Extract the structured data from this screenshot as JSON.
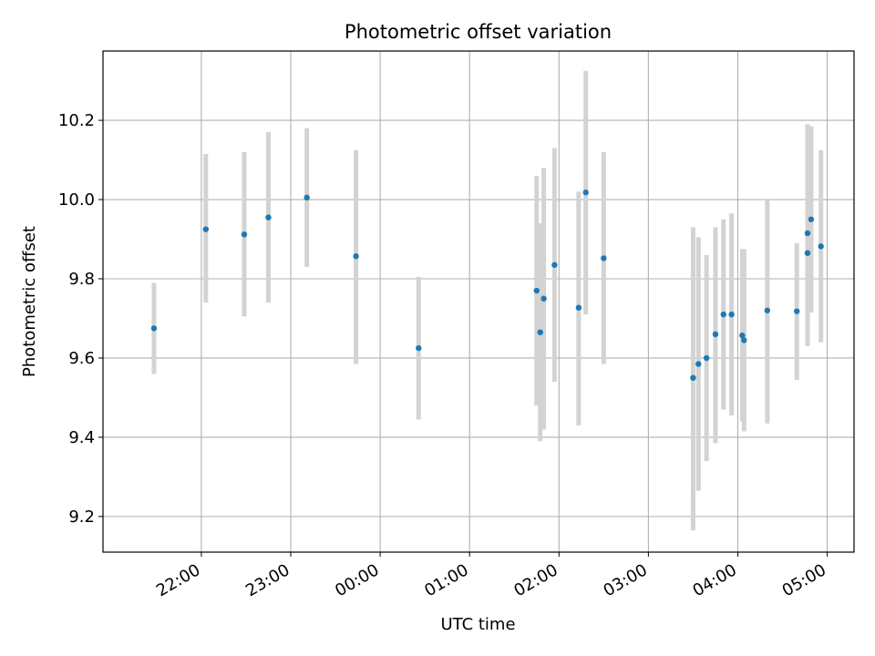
{
  "chart_data": {
    "type": "scatter",
    "title": "Photometric offset variation",
    "xlabel": "UTC time",
    "ylabel": "Photometric offset",
    "x_unit": "hours",
    "x_ticks": [
      {
        "value": 22,
        "label": "22:00"
      },
      {
        "value": 23,
        "label": "23:00"
      },
      {
        "value": 24,
        "label": "00:00"
      },
      {
        "value": 25,
        "label": "01:00"
      },
      {
        "value": 26,
        "label": "02:00"
      },
      {
        "value": 27,
        "label": "03:00"
      },
      {
        "value": 28,
        "label": "04:00"
      },
      {
        "value": 29,
        "label": "05:00"
      }
    ],
    "y_ticks": [
      {
        "value": 9.2,
        "label": "9.2"
      },
      {
        "value": 9.4,
        "label": "9.4"
      },
      {
        "value": 9.6,
        "label": "9.6"
      },
      {
        "value": 9.8,
        "label": "9.8"
      },
      {
        "value": 10.0,
        "label": "10.0"
      },
      {
        "value": 10.2,
        "label": "10.2"
      }
    ],
    "xlim": [
      20.9,
      29.3
    ],
    "ylim": [
      9.11,
      10.375
    ],
    "grid": true,
    "marker_color": "#1f77b4",
    "errorbar_color": "#d3d3d3",
    "points": [
      {
        "x": 21.47,
        "y": 9.675,
        "ylo": 9.56,
        "yhi": 9.79
      },
      {
        "x": 22.05,
        "y": 9.925,
        "ylo": 9.74,
        "yhi": 10.115
      },
      {
        "x": 22.48,
        "y": 9.912,
        "ylo": 9.705,
        "yhi": 10.12
      },
      {
        "x": 22.75,
        "y": 9.955,
        "ylo": 9.74,
        "yhi": 10.17
      },
      {
        "x": 23.18,
        "y": 10.005,
        "ylo": 9.83,
        "yhi": 10.18
      },
      {
        "x": 23.73,
        "y": 9.857,
        "ylo": 9.585,
        "yhi": 10.125
      },
      {
        "x": 24.43,
        "y": 9.625,
        "ylo": 9.445,
        "yhi": 9.805
      },
      {
        "x": 25.75,
        "y": 9.77,
        "ylo": 9.48,
        "yhi": 10.06
      },
      {
        "x": 25.79,
        "y": 9.665,
        "ylo": 9.39,
        "yhi": 9.94
      },
      {
        "x": 25.83,
        "y": 9.75,
        "ylo": 9.42,
        "yhi": 10.08
      },
      {
        "x": 25.95,
        "y": 9.835,
        "ylo": 9.54,
        "yhi": 10.13
      },
      {
        "x": 26.22,
        "y": 9.727,
        "ylo": 9.43,
        "yhi": 10.02
      },
      {
        "x": 26.3,
        "y": 10.018,
        "ylo": 9.71,
        "yhi": 10.325
      },
      {
        "x": 26.5,
        "y": 9.852,
        "ylo": 9.585,
        "yhi": 10.12
      },
      {
        "x": 27.5,
        "y": 9.55,
        "ylo": 9.165,
        "yhi": 9.93
      },
      {
        "x": 27.56,
        "y": 9.585,
        "ylo": 9.265,
        "yhi": 9.905
      },
      {
        "x": 27.65,
        "y": 9.6,
        "ylo": 9.34,
        "yhi": 9.86
      },
      {
        "x": 27.75,
        "y": 9.66,
        "ylo": 9.385,
        "yhi": 9.93
      },
      {
        "x": 27.84,
        "y": 9.71,
        "ylo": 9.47,
        "yhi": 9.95
      },
      {
        "x": 27.93,
        "y": 9.71,
        "ylo": 9.455,
        "yhi": 9.965
      },
      {
        "x": 28.05,
        "y": 9.657,
        "ylo": 9.44,
        "yhi": 9.875
      },
      {
        "x": 28.07,
        "y": 9.645,
        "ylo": 9.415,
        "yhi": 9.875
      },
      {
        "x": 28.33,
        "y": 9.72,
        "ylo": 9.435,
        "yhi": 10.0
      },
      {
        "x": 28.66,
        "y": 9.718,
        "ylo": 9.545,
        "yhi": 9.89
      },
      {
        "x": 28.78,
        "y": 9.865,
        "ylo": 9.63,
        "yhi": 10.1
      },
      {
        "x": 28.78,
        "y": 9.915,
        "ylo": 9.64,
        "yhi": 10.19
      },
      {
        "x": 28.82,
        "y": 9.95,
        "ylo": 9.715,
        "yhi": 10.185
      },
      {
        "x": 28.93,
        "y": 9.882,
        "ylo": 9.64,
        "yhi": 10.125
      }
    ]
  }
}
